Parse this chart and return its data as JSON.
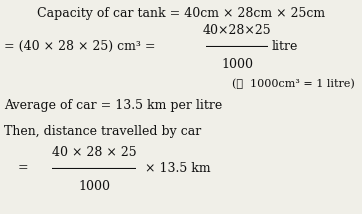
{
  "bg_color": "#f0efe8",
  "text_color": "#111111",
  "line1": "Capacity of car tank = 40cm × 28cm × 25cm",
  "line2_left": "= (40 × 28 × 25) cm³ =",
  "line2_frac_num": "40×28×25",
  "line2_frac_den": "1000",
  "line2_right": "litre",
  "line3": "(∴  1000cm³ = 1 litre)",
  "line4": "Average of car = 13.5 km per litre",
  "line5": "Then, distance travelled by car",
  "line6_eq": "=",
  "line6_frac_num": "40 × 28 × 25",
  "line6_frac_den": "1000",
  "line6_right": "× 13.5 km",
  "fs": 9.0,
  "fs_small": 8.0
}
